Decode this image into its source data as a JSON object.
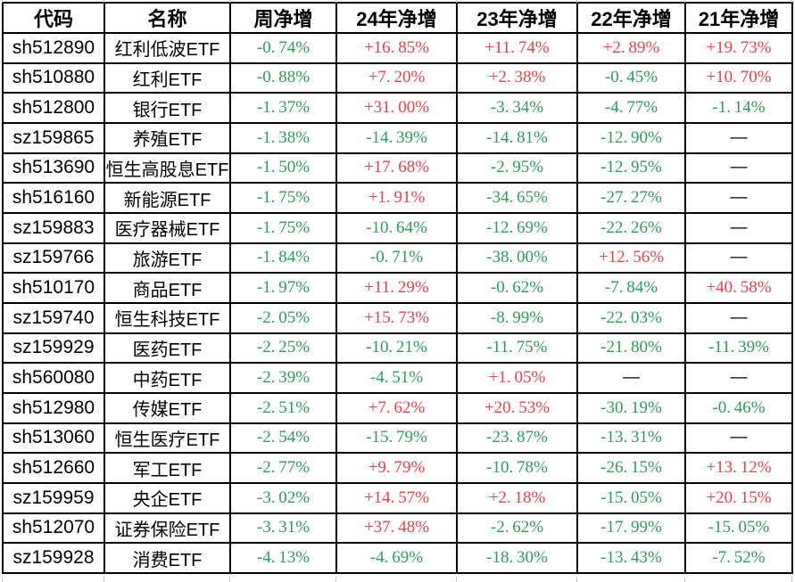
{
  "colors": {
    "positive_red": "#f0414b",
    "negative_green": "#2e9e5b",
    "text": "#000000",
    "border": "#000000",
    "gridline_gray": "#c6c6c6",
    "background": "#ffffff"
  },
  "chart_data": {
    "type": "table",
    "title": "",
    "missing_placeholder": "—",
    "columns": [
      "代码",
      "名称",
      "周净增",
      "24年净增",
      "23年净增",
      "22年净增",
      "21年净增"
    ],
    "rows": [
      [
        "sh512890",
        "红利低波ETF",
        "-0.74%",
        "+16.85%",
        "+11.74%",
        "+2.89%",
        "+19.73%"
      ],
      [
        "sh510880",
        "红利ETF",
        "-0.88%",
        "+7.20%",
        "+2.38%",
        "-0.45%",
        "+10.70%"
      ],
      [
        "sh512800",
        "银行ETF",
        "-1.37%",
        "+31.00%",
        "-3.34%",
        "-4.77%",
        "-1.14%"
      ],
      [
        "sz159865",
        "养殖ETF",
        "-1.38%",
        "-14.39%",
        "-14.81%",
        "-12.90%",
        "—"
      ],
      [
        "sh513690",
        "恒生高股息ETF",
        "-1.50%",
        "+17.68%",
        "-2.95%",
        "-12.95%",
        "—"
      ],
      [
        "sh516160",
        "新能源ETF",
        "-1.75%",
        "+1.91%",
        "-34.65%",
        "-27.27%",
        "—"
      ],
      [
        "sz159883",
        "医疗器械ETF",
        "-1.75%",
        "-10.64%",
        "-12.69%",
        "-22.26%",
        "—"
      ],
      [
        "sz159766",
        "旅游ETF",
        "-1.84%",
        "-0.71%",
        "-38.00%",
        "+12.56%",
        "—"
      ],
      [
        "sh510170",
        "商品ETF",
        "-1.97%",
        "+11.29%",
        "-0.62%",
        "-7.84%",
        "+40.58%"
      ],
      [
        "sz159740",
        "恒生科技ETF",
        "-2.05%",
        "+15.73%",
        "-8.99%",
        "-22.03%",
        "—"
      ],
      [
        "sz159929",
        "医药ETF",
        "-2.25%",
        "-10.21%",
        "-11.75%",
        "-21.80%",
        "-11.39%"
      ],
      [
        "sh560080",
        "中药ETF",
        "-2.39%",
        "-4.51%",
        "+1.05%",
        "—",
        "—"
      ],
      [
        "sh512980",
        "传媒ETF",
        "-2.51%",
        "+7.62%",
        "+20.53%",
        "-30.19%",
        "-0.46%"
      ],
      [
        "sh513060",
        "恒生医疗ETF",
        "-2.54%",
        "-15.79%",
        "-23.87%",
        "-13.31%",
        "—"
      ],
      [
        "sh512660",
        "军工ETF",
        "-2.77%",
        "+9.79%",
        "-10.78%",
        "-26.15%",
        "+13.12%"
      ],
      [
        "sz159959",
        "央企ETF",
        "-3.02%",
        "+14.57%",
        "+2.18%",
        "-15.05%",
        "+20.15%"
      ],
      [
        "sh512070",
        "证券保险ETF",
        "-3.31%",
        "+37.48%",
        "-2.62%",
        "-17.99%",
        "-15.05%"
      ],
      [
        "sz159928",
        "消费ETF",
        "-4.13%",
        "-4.69%",
        "-18.30%",
        "-13.43%",
        "-7.52%"
      ]
    ]
  }
}
